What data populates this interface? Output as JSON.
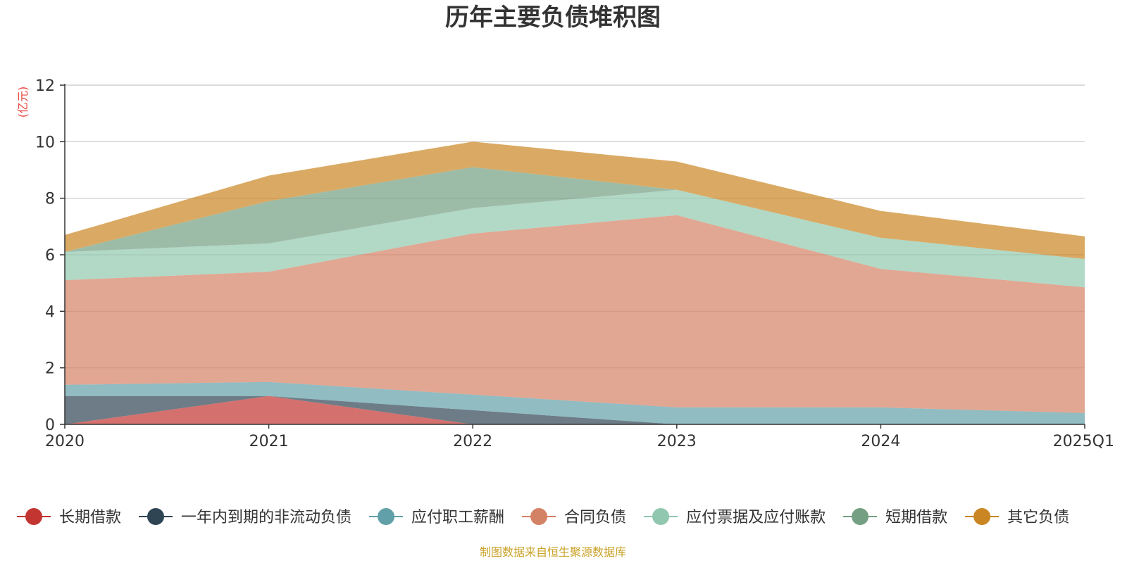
{
  "chart_data": {
    "type": "area",
    "stacked": true,
    "title": "历年主要负债堆积图",
    "ylabel": "(亿元)",
    "xlabel": "",
    "categories": [
      "2020",
      "2021",
      "2022",
      "2023",
      "2024",
      "2025Q1"
    ],
    "ylim": [
      0,
      12
    ],
    "yticks": [
      0,
      2,
      4,
      6,
      8,
      10,
      12
    ],
    "grid": true,
    "legend_position": "bottom",
    "series": [
      {
        "name": "长期借款",
        "color": "#c23531",
        "values": [
          0.0,
          1.0,
          0.0,
          0.0,
          0.0,
          0.0
        ]
      },
      {
        "name": "一年内到期的非流动负债",
        "color": "#2f4554",
        "values": [
          1.0,
          0.0,
          0.5,
          0.0,
          0.0,
          0.0
        ]
      },
      {
        "name": "应付职工薪酬",
        "color": "#61a0a8",
        "values": [
          0.4,
          0.5,
          0.55,
          0.6,
          0.6,
          0.4
        ]
      },
      {
        "name": "合同负债",
        "color": "#d48265",
        "values": [
          3.7,
          3.9,
          5.7,
          6.8,
          4.9,
          4.45
        ]
      },
      {
        "name": "应付票据及应付账款",
        "color": "#91c7ae",
        "values": [
          1.0,
          1.0,
          0.9,
          0.9,
          1.1,
          1.0
        ]
      },
      {
        "name": "短期借款",
        "color": "#749f83",
        "values": [
          0.0,
          1.5,
          1.45,
          0.0,
          0.0,
          0.0
        ]
      },
      {
        "name": "其它负债",
        "color": "#ca8622",
        "values": [
          0.6,
          0.9,
          0.9,
          1.0,
          0.95,
          0.8
        ]
      }
    ]
  },
  "source_note": "制图数据来自恒生聚源数据库"
}
